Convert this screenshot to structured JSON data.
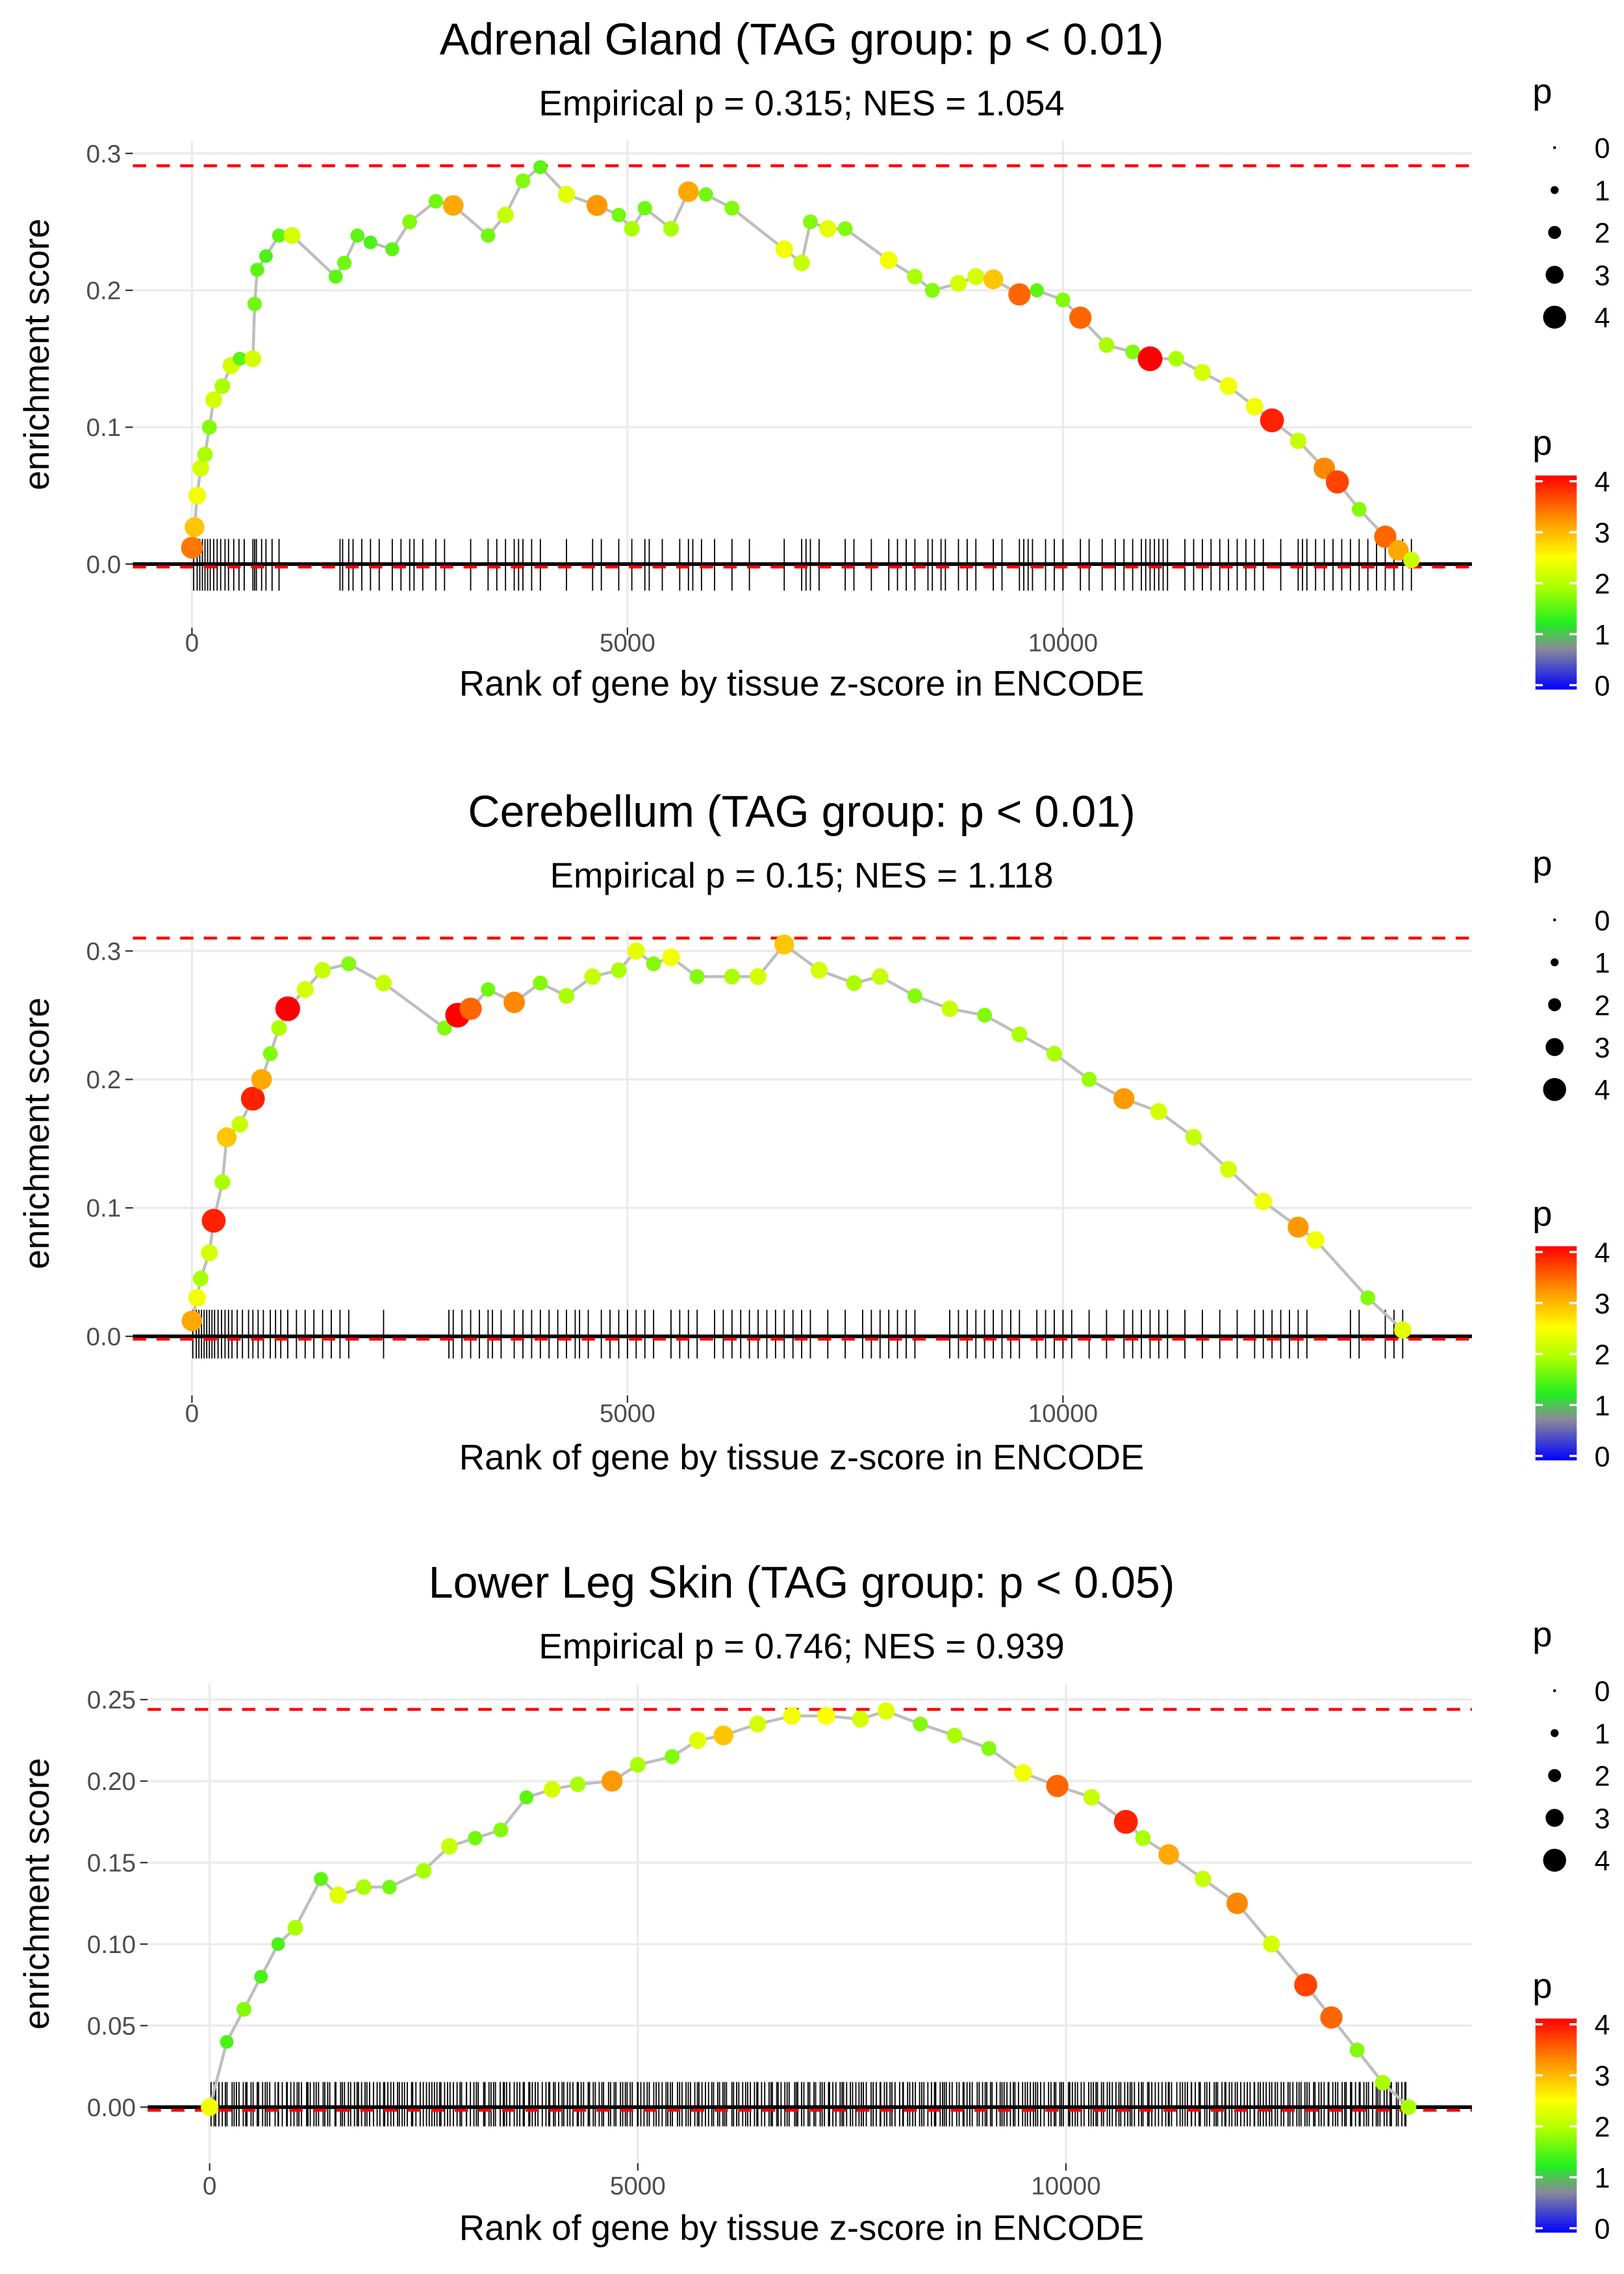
{
  "chart_data": [
    {
      "type": "line",
      "title": "Adrenal Gland (TAG group: p < 0.01)",
      "subtitle": "Empirical p = 0.315; NES = 1.054",
      "xlabel": "Rank of gene by tissue z-score in ENCODE",
      "ylabel": "enrichment score",
      "xticks": [
        "0",
        "5000",
        "10000"
      ],
      "xtick_values": [
        0,
        5000,
        10000
      ],
      "yticks": [
        "0.0",
        "0.1",
        "0.2",
        "0.3"
      ],
      "ytick_values": [
        0,
        0.1,
        0.2,
        0.3
      ],
      "max_es": 0.291,
      "min_es": -0.001,
      "points": [
        [
          0,
          0.012,
          3.5
        ],
        [
          30,
          0.027,
          3
        ],
        [
          60,
          0.05,
          2.5
        ],
        [
          100,
          0.07,
          2.3
        ],
        [
          150,
          0.08,
          2
        ],
        [
          200,
          0.1,
          1.8
        ],
        [
          250,
          0.12,
          2.3
        ],
        [
          350,
          0.13,
          2
        ],
        [
          450,
          0.145,
          2.3
        ],
        [
          550,
          0.15,
          1.6
        ],
        [
          700,
          0.15,
          2.3
        ],
        [
          720,
          0.19,
          1.7
        ],
        [
          750,
          0.215,
          1.6
        ],
        [
          850,
          0.225,
          1.5
        ],
        [
          1000,
          0.24,
          1.6
        ],
        [
          1150,
          0.24,
          2.3
        ],
        [
          1650,
          0.21,
          1.6
        ],
        [
          1750,
          0.22,
          1.7
        ],
        [
          1900,
          0.24,
          1.6
        ],
        [
          2050,
          0.235,
          1.5
        ],
        [
          2300,
          0.23,
          1.6
        ],
        [
          2500,
          0.25,
          1.8
        ],
        [
          2800,
          0.265,
          1.7
        ],
        [
          3000,
          0.262,
          3.2
        ],
        [
          3400,
          0.24,
          1.7
        ],
        [
          3600,
          0.255,
          2.2
        ],
        [
          3800,
          0.28,
          1.8
        ],
        [
          4000,
          0.29,
          1.6
        ],
        [
          4300,
          0.27,
          2.4
        ],
        [
          4650,
          0.262,
          3.3
        ],
        [
          4900,
          0.255,
          1.7
        ],
        [
          5050,
          0.245,
          2
        ],
        [
          5200,
          0.26,
          1.7
        ],
        [
          5500,
          0.245,
          2
        ],
        [
          5700,
          0.272,
          3.2
        ],
        [
          5900,
          0.27,
          1.7
        ],
        [
          6200,
          0.26,
          1.8
        ],
        [
          6800,
          0.23,
          2.5
        ],
        [
          7000,
          0.22,
          2.2
        ],
        [
          7100,
          0.25,
          1.8
        ],
        [
          7300,
          0.245,
          2.4
        ],
        [
          7500,
          0.245,
          1.8
        ],
        [
          8000,
          0.222,
          2.5
        ],
        [
          8300,
          0.21,
          2
        ],
        [
          8500,
          0.2,
          1.8
        ],
        [
          8800,
          0.205,
          2.3
        ],
        [
          9000,
          0.21,
          2.3
        ],
        [
          9200,
          0.208,
          3
        ],
        [
          9500,
          0.197,
          3.6
        ],
        [
          9700,
          0.2,
          1.6
        ],
        [
          10000,
          0.193,
          1.8
        ],
        [
          10200,
          0.18,
          3.6
        ],
        [
          10500,
          0.16,
          2
        ],
        [
          10800,
          0.155,
          1.8
        ],
        [
          11000,
          0.15,
          4.2
        ],
        [
          11300,
          0.15,
          2
        ],
        [
          11600,
          0.14,
          2.3
        ],
        [
          11900,
          0.13,
          2.5
        ],
        [
          12200,
          0.115,
          2.5
        ],
        [
          12400,
          0.105,
          4
        ],
        [
          12700,
          0.09,
          2.2
        ],
        [
          13000,
          0.07,
          3.4
        ],
        [
          13150,
          0.06,
          3.8
        ],
        [
          13400,
          0.04,
          1.8
        ],
        [
          13700,
          0.02,
          3.6
        ],
        [
          13850,
          0.01,
          3.2
        ],
        [
          14000,
          0.003,
          2.2
        ]
      ],
      "rug": [
        20,
        60,
        90,
        120,
        150,
        180,
        210,
        250,
        290,
        330,
        380,
        420,
        480,
        540,
        600,
        700,
        720,
        740,
        800,
        850,
        920,
        1000,
        1700,
        1730,
        1800,
        1850,
        1950,
        2050,
        2150,
        2300,
        2400,
        2500,
        2550,
        2650,
        2800,
        2900,
        3200,
        3400,
        3500,
        3600,
        3700,
        3750,
        3800,
        3900,
        4000,
        4300,
        4600,
        4700,
        4900,
        5050,
        5200,
        5250,
        5400,
        5600,
        5700,
        5750,
        5850,
        6000,
        6200,
        6400,
        6800,
        7000,
        7050,
        7100,
        7200,
        7500,
        7600,
        7800,
        8000,
        8100,
        8200,
        8300,
        8450,
        8500,
        8600,
        8650,
        8800,
        8900,
        9000,
        9200,
        9300,
        9500,
        9550,
        9600,
        9650,
        9800,
        9900,
        10000,
        10200,
        10300,
        10450,
        10600,
        10700,
        10800,
        10900,
        10950,
        11000,
        11050,
        11100,
        11150,
        11200,
        11400,
        11500,
        11600,
        11700,
        11800,
        11900,
        12000,
        12100,
        12200,
        12300,
        12500,
        12700,
        12750,
        12800,
        12900,
        13000,
        13100,
        13200,
        13300,
        13400,
        13500,
        13600,
        13700,
        13800,
        13900,
        14000
      ]
    },
    {
      "type": "line",
      "title": "Cerebellum (TAG group: p < 0.01)",
      "subtitle": "Empirical p = 0.15; NES = 1.118",
      "xlabel": "Rank of gene by tissue z-score in ENCODE",
      "ylabel": "enrichment score",
      "xticks": [
        "0",
        "5000",
        "10000"
      ],
      "xtick_values": [
        0,
        5000,
        10000
      ],
      "yticks": [
        "0.0",
        "0.1",
        "0.2",
        "0.3"
      ],
      "ytick_values": [
        0,
        0.1,
        0.2,
        0.3
      ],
      "max_es": 0.31,
      "min_es": -0.001,
      "points": [
        [
          0,
          0.012,
          3.2
        ],
        [
          60,
          0.03,
          2.5
        ],
        [
          100,
          0.045,
          2
        ],
        [
          200,
          0.065,
          2.3
        ],
        [
          250,
          0.09,
          4
        ],
        [
          350,
          0.12,
          2
        ],
        [
          400,
          0.155,
          3
        ],
        [
          550,
          0.165,
          2.2
        ],
        [
          700,
          0.185,
          4
        ],
        [
          800,
          0.2,
          3.2
        ],
        [
          900,
          0.22,
          1.8
        ],
        [
          1000,
          0.24,
          2
        ],
        [
          1100,
          0.255,
          4.2
        ],
        [
          1300,
          0.27,
          2.3
        ],
        [
          1500,
          0.285,
          2.2
        ],
        [
          1800,
          0.29,
          1.8
        ],
        [
          2200,
          0.275,
          2.2
        ],
        [
          2900,
          0.24,
          1.8
        ],
        [
          3050,
          0.25,
          4.2
        ],
        [
          3200,
          0.255,
          3.6
        ],
        [
          3400,
          0.27,
          1.7
        ],
        [
          3700,
          0.26,
          3.4
        ],
        [
          4000,
          0.275,
          1.8
        ],
        [
          4300,
          0.265,
          2
        ],
        [
          4600,
          0.28,
          2.2
        ],
        [
          4900,
          0.285,
          2
        ],
        [
          5100,
          0.3,
          2.4
        ],
        [
          5300,
          0.29,
          1.8
        ],
        [
          5500,
          0.295,
          2.5
        ],
        [
          5800,
          0.28,
          1.8
        ],
        [
          6200,
          0.28,
          2
        ],
        [
          6500,
          0.28,
          2.3
        ],
        [
          6800,
          0.305,
          3
        ],
        [
          7200,
          0.285,
          2.3
        ],
        [
          7600,
          0.275,
          2
        ],
        [
          7900,
          0.28,
          2.2
        ],
        [
          8300,
          0.265,
          1.8
        ],
        [
          8700,
          0.255,
          2.2
        ],
        [
          9100,
          0.25,
          1.8
        ],
        [
          9500,
          0.235,
          2
        ],
        [
          9900,
          0.22,
          2
        ],
        [
          10300,
          0.2,
          1.9
        ],
        [
          10700,
          0.185,
          3.3
        ],
        [
          11100,
          0.175,
          2.3
        ],
        [
          11500,
          0.155,
          2.2
        ],
        [
          11900,
          0.13,
          2.3
        ],
        [
          12300,
          0.105,
          2.5
        ],
        [
          12700,
          0.085,
          3.3
        ],
        [
          12900,
          0.075,
          2.5
        ],
        [
          13500,
          0.03,
          1.8
        ],
        [
          13900,
          0.005,
          2.4
        ]
      ],
      "rug": [
        10,
        50,
        80,
        110,
        140,
        170,
        200,
        230,
        260,
        300,
        340,
        380,
        420,
        460,
        520,
        580,
        650,
        700,
        760,
        820,
        900,
        960,
        1020,
        1100,
        1200,
        1300,
        1400,
        1500,
        1600,
        1700,
        1800,
        2200,
        2950,
        3000,
        3100,
        3200,
        3300,
        3400,
        3450,
        3550,
        3700,
        3800,
        3900,
        4000,
        4100,
        4200,
        4300,
        4400,
        4450,
        4550,
        4700,
        4800,
        4900,
        5000,
        5100,
        5200,
        5300,
        5500,
        5600,
        5700,
        5800,
        6000,
        6100,
        6200,
        6300,
        6400,
        6500,
        6600,
        6700,
        6800,
        6900,
        7000,
        7100,
        7300,
        7500,
        7700,
        7800,
        7900,
        8000,
        8100,
        8200,
        8300,
        8700,
        8800,
        8900,
        9000,
        9100,
        9200,
        9300,
        9400,
        9500,
        9700,
        9800,
        9900,
        10000,
        10100,
        10300,
        10500,
        10700,
        10800,
        10900,
        11000,
        11100,
        11200,
        11400,
        11600,
        11800,
        12000,
        12200,
        12300,
        12400,
        12500,
        12600,
        12700,
        12800,
        13300,
        13400,
        13700,
        13800,
        13900
      ]
    },
    {
      "type": "line",
      "title": "Lower Leg Skin (TAG group: p < 0.05)",
      "subtitle": "Empirical p = 0.746; NES = 0.939",
      "xlabel": "Rank of gene by tissue z-score in ENCODE",
      "ylabel": "enrichment score",
      "xticks": [
        "0",
        "5000",
        "10000"
      ],
      "xtick_values": [
        0,
        5000,
        10000
      ],
      "yticks": [
        "0.00",
        "0.05",
        "0.10",
        "0.15",
        "0.20",
        "0.25"
      ],
      "ytick_values": [
        0,
        0.05,
        0.1,
        0.15,
        0.2,
        0.25
      ],
      "max_es": 0.244,
      "min_es": -0.001,
      "points": [
        [
          0,
          0,
          2.5
        ],
        [
          200,
          0.04,
          1.5
        ],
        [
          400,
          0.06,
          1.8
        ],
        [
          600,
          0.08,
          1.5
        ],
        [
          800,
          0.1,
          1.5
        ],
        [
          1000,
          0.11,
          2
        ],
        [
          1300,
          0.14,
          1.6
        ],
        [
          1500,
          0.13,
          2.4
        ],
        [
          1800,
          0.135,
          2
        ],
        [
          2100,
          0.135,
          1.7
        ],
        [
          2500,
          0.145,
          2
        ],
        [
          2800,
          0.16,
          2.2
        ],
        [
          3100,
          0.165,
          1.7
        ],
        [
          3400,
          0.17,
          1.8
        ],
        [
          3700,
          0.19,
          1.6
        ],
        [
          4000,
          0.195,
          2.3
        ],
        [
          4300,
          0.198,
          2
        ],
        [
          4700,
          0.2,
          3.3
        ],
        [
          5000,
          0.21,
          2
        ],
        [
          5400,
          0.215,
          1.8
        ],
        [
          5700,
          0.225,
          2.4
        ],
        [
          6000,
          0.228,
          3
        ],
        [
          6400,
          0.235,
          2.3
        ],
        [
          6800,
          0.24,
          2.5
        ],
        [
          7200,
          0.24,
          2.6
        ],
        [
          7600,
          0.238,
          2.3
        ],
        [
          7900,
          0.243,
          2.4
        ],
        [
          8300,
          0.235,
          1.8
        ],
        [
          8700,
          0.228,
          2
        ],
        [
          9100,
          0.22,
          1.8
        ],
        [
          9500,
          0.205,
          2.5
        ],
        [
          9900,
          0.197,
          3.6
        ],
        [
          10300,
          0.19,
          2.2
        ],
        [
          10700,
          0.175,
          4
        ],
        [
          10900,
          0.165,
          2
        ],
        [
          11200,
          0.155,
          3.2
        ],
        [
          11600,
          0.14,
          2.2
        ],
        [
          12000,
          0.125,
          3.4
        ],
        [
          12400,
          0.1,
          2.3
        ],
        [
          12800,
          0.075,
          3.8
        ],
        [
          13100,
          0.055,
          3.6
        ],
        [
          13400,
          0.035,
          1.8
        ],
        [
          13700,
          0.015,
          2
        ],
        [
          14000,
          0,
          2
        ]
      ],
      "rug_range": [
        0,
        14000
      ],
      "rug_count": 420
    }
  ],
  "legend": {
    "size_title": "p",
    "size_labels": [
      "0",
      "1",
      "2",
      "3",
      "4"
    ],
    "color_title": "p",
    "color_labels": [
      "0",
      "1",
      "2",
      "3",
      "4"
    ],
    "color_stops": [
      [
        0,
        "#0000ff"
      ],
      [
        0.8,
        "#8a8a9a"
      ],
      [
        1.3,
        "#22ee22"
      ],
      [
        2.0,
        "#aaff00"
      ],
      [
        2.6,
        "#ffff00"
      ],
      [
        3.3,
        "#ff9900"
      ],
      [
        4.2,
        "#ff0000"
      ]
    ]
  },
  "colors": {
    "curve": "#bebebe",
    "dashed": "#ff0000",
    "rug": "#000000",
    "grid": "#ebebeb"
  }
}
